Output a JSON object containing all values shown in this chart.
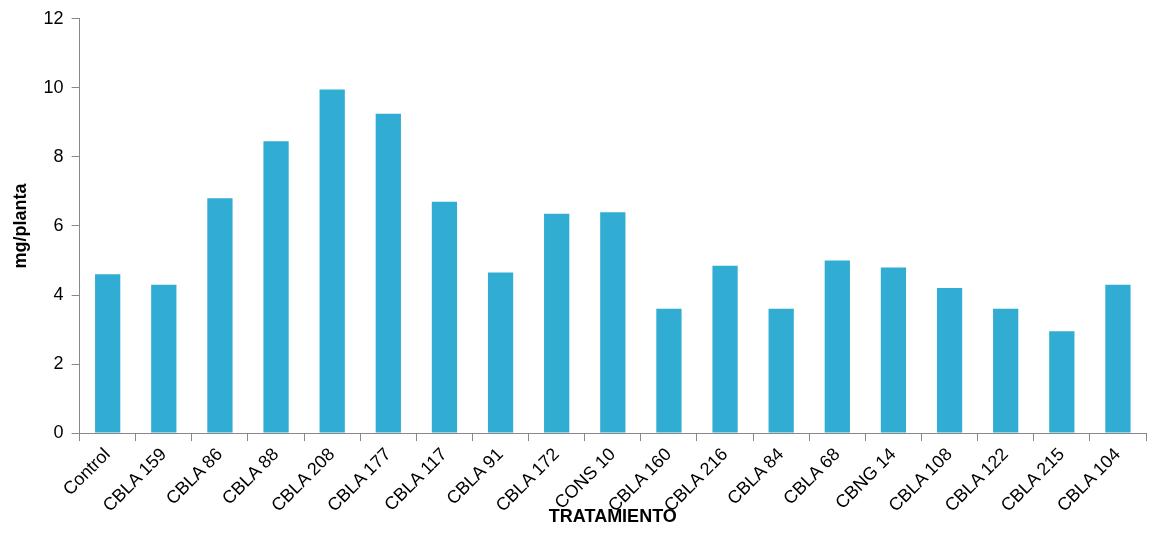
{
  "chart_data": {
    "type": "bar",
    "xlabel": "TRATAMIENTO",
    "ylabel": "mg/planta",
    "categories": [
      "Control",
      "CBLA 159",
      "CBLA 86",
      "CBLA 88",
      "CBLA 208",
      "CBLA 177",
      "CBLA 117",
      "CBLA 91",
      "CBLA 172",
      "CONS 10",
      "CBLA 160",
      "CBLA 216",
      "CBLA 84",
      "CBLA 68",
      "CBNG 14",
      "CBLA 108",
      "CBLA 122",
      "CBLA 215",
      "CBLA 104"
    ],
    "values": [
      4.6,
      4.3,
      6.8,
      8.45,
      9.95,
      9.25,
      6.7,
      4.65,
      6.35,
      6.4,
      3.6,
      4.85,
      3.6,
      5.0,
      4.8,
      4.2,
      3.6,
      2.95,
      4.3
    ],
    "color": "#31acd2",
    "ylim": [
      0,
      12
    ],
    "yticks": [
      0,
      2,
      4,
      6,
      8,
      10,
      12
    ],
    "grid": false,
    "legend": false
  }
}
